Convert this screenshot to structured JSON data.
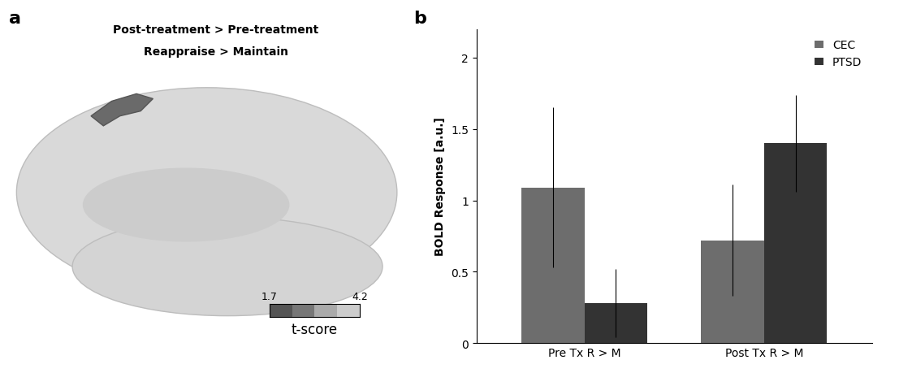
{
  "chart_data": {
    "type": "bar",
    "panel_label": "b",
    "categories": [
      "Pre Tx R > M",
      "Post Tx R > M"
    ],
    "series": [
      {
        "name": "CEC",
        "color": "#6d6d6d",
        "values": [
          1.09,
          0.72
        ],
        "errors": [
          0.56,
          0.39
        ]
      },
      {
        "name": "PTSD",
        "color": "#333333",
        "values": [
          0.28,
          1.4
        ],
        "errors": [
          0.24,
          0.34
        ]
      }
    ],
    "y_label": "BOLD Response [a.u.]",
    "ylim": [
      0,
      2.2
    ],
    "yticks": [
      0,
      0.5,
      1,
      1.5,
      2
    ],
    "legend": "upper right",
    "grid": false
  },
  "brain_panel": {
    "panel_label": "a",
    "title_lines": [
      "Post-treatment > Pre-treatment",
      "Reappraise > Maintain"
    ],
    "colorbar": {
      "range": [
        1.7,
        4.2
      ],
      "ticks": [
        1.7,
        4.2
      ],
      "label": "t-score"
    }
  }
}
